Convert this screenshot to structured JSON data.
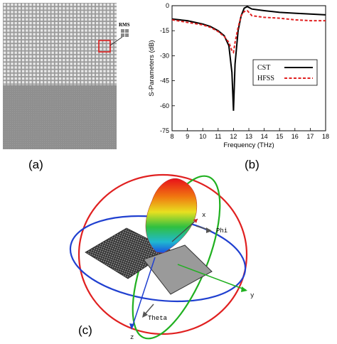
{
  "labels": {
    "a": "(a)",
    "b": "(b)",
    "c": "(c)"
  },
  "panel_a": {
    "inset_label": "RMS"
  },
  "panel_c": {
    "axis_labels": {
      "x": "x",
      "y": "y",
      "z": "z",
      "phi": "Phi",
      "theta": "Theta"
    }
  },
  "chart_data": {
    "type": "line",
    "xlabel": "Frequency (THz)",
    "ylabel": "S-Parameters (dB)",
    "xlim": [
      8,
      18
    ],
    "ylim": [
      -75,
      0
    ],
    "xticks": [
      8,
      9,
      10,
      11,
      12,
      13,
      14,
      15,
      16,
      17,
      18
    ],
    "yticks": [
      0,
      -15,
      -30,
      -45,
      -60,
      -75
    ],
    "grid": false,
    "legend_position": "right",
    "series": [
      {
        "name": "CST",
        "color": "#000000",
        "style": "solid",
        "x": [
          8,
          9,
          10,
          10.5,
          11,
          11.4,
          11.7,
          11.9,
          12.0,
          12.1,
          12.3,
          12.5,
          12.7,
          12.9,
          13.2,
          14,
          15,
          16,
          17,
          18
        ],
        "y": [
          -8,
          -9,
          -11,
          -12.5,
          -15,
          -18,
          -24,
          -40,
          -63,
          -35,
          -15,
          -6,
          -1.5,
          -0.5,
          -2,
          -3,
          -4,
          -4.5,
          -5,
          -5.5
        ]
      },
      {
        "name": "HFSS",
        "color": "#e02020",
        "style": "dashed",
        "x": [
          8,
          9,
          10,
          10.5,
          11,
          11.4,
          11.7,
          11.9,
          12.0,
          12.1,
          12.3,
          12.5,
          12.7,
          12.9,
          13.2,
          14,
          15,
          16,
          17,
          18
        ],
        "y": [
          -8.5,
          -10,
          -11.5,
          -13,
          -15.5,
          -18.5,
          -22,
          -27,
          -28,
          -22,
          -13,
          -6,
          -3.5,
          -3,
          -6,
          -7,
          -7.5,
          -8.5,
          -9,
          -9
        ]
      }
    ]
  }
}
